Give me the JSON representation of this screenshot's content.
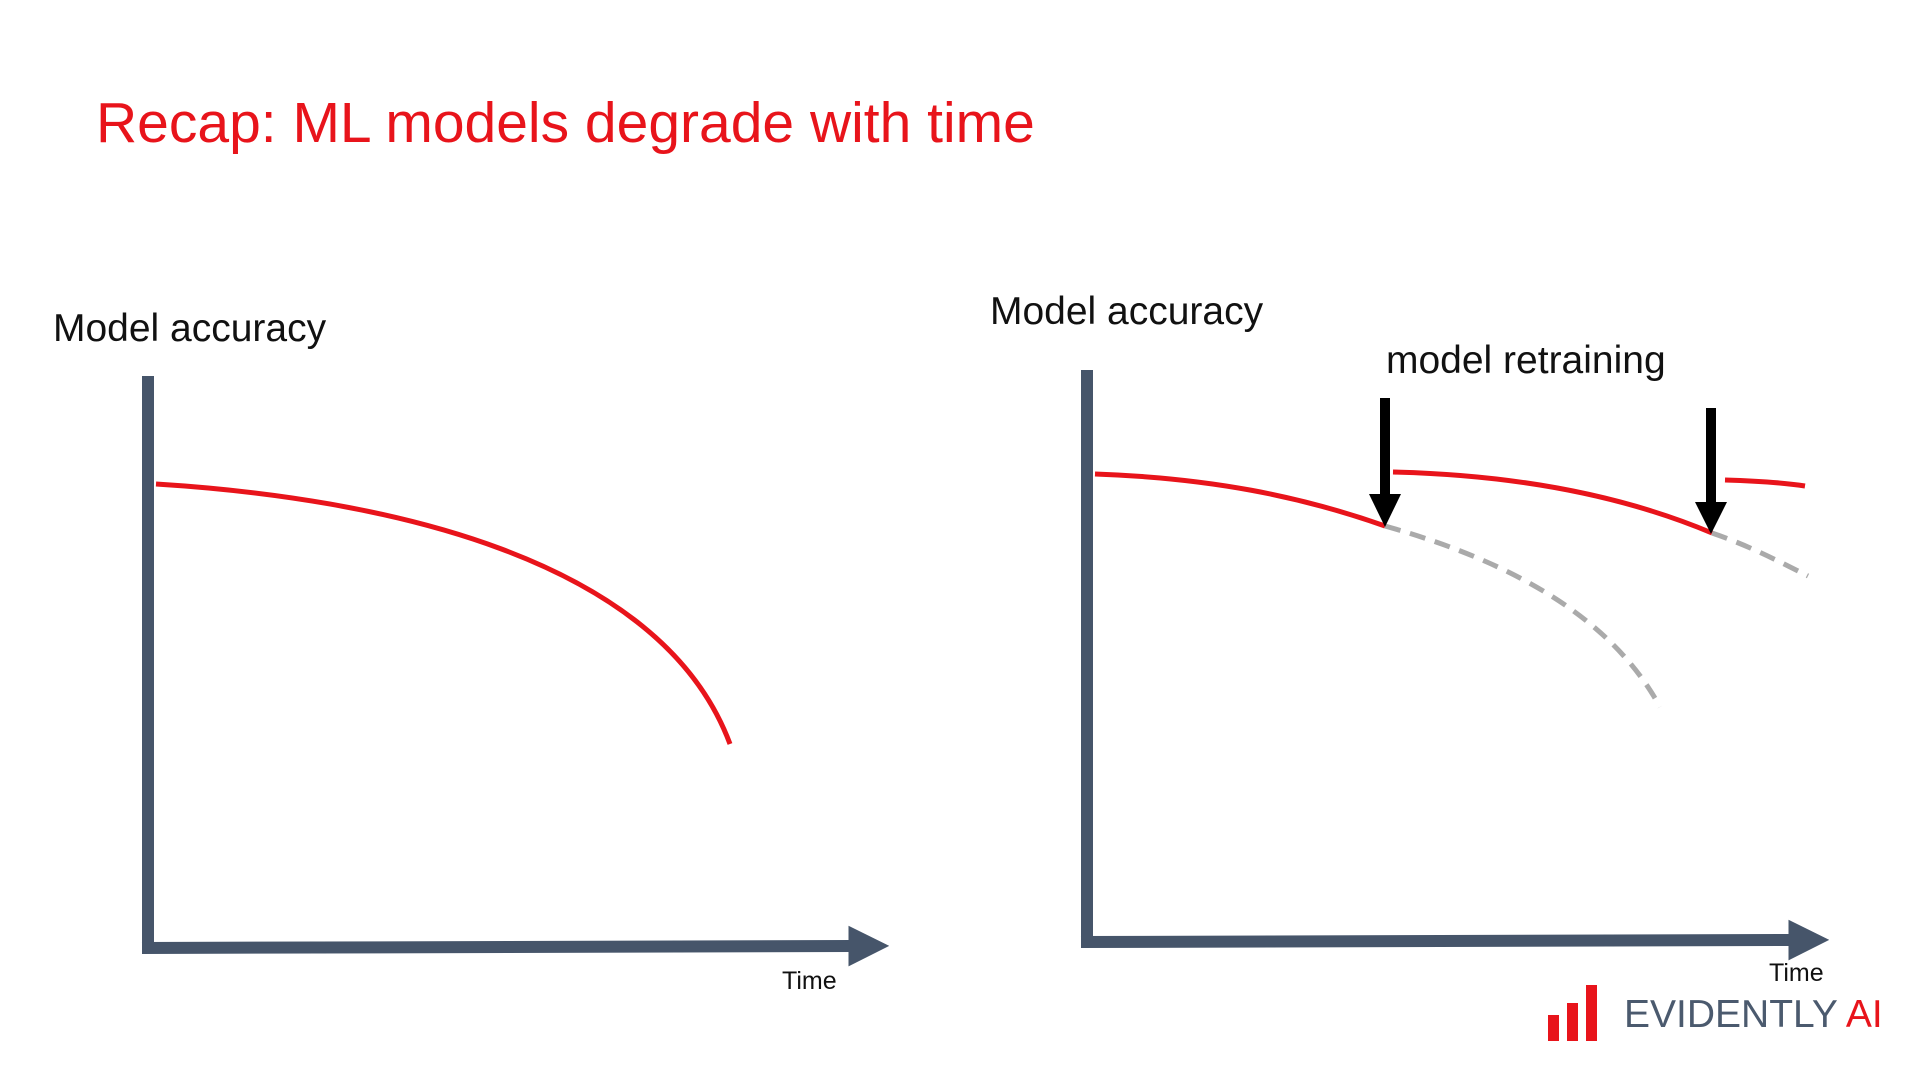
{
  "slide": {
    "title": "Recap: ML models degrade with time"
  },
  "left_chart": {
    "ylabel": "Model accuracy",
    "xlabel": "Time"
  },
  "right_chart": {
    "ylabel": "Model accuracy",
    "xlabel": "Time",
    "annotation": "model retraining"
  },
  "logo": {
    "name": "EVIDENTLY",
    "suffix": "AI"
  },
  "colors": {
    "title": "#e8141b",
    "accuracy_curve": "#e8141b",
    "axis": "#46556a",
    "projected_curve": "#aaaaaa",
    "retraining_arrow": "#000000",
    "logo_bars": "#e8141b",
    "logo_text": "#4b5a6e"
  }
}
